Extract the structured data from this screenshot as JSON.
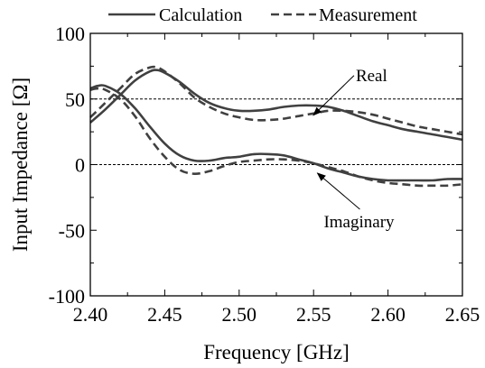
{
  "chart_data": {
    "type": "line",
    "xlabel": "Frequency [GHz]",
    "ylabel": "Input Impedance [Ω]",
    "xlim": [
      2.4,
      2.65
    ],
    "ylim": [
      -100,
      100
    ],
    "xticks": [
      "2.40",
      "2.45",
      "2.50",
      "2.55",
      "2.60",
      "2.65"
    ],
    "yticks": [
      "100",
      "50",
      "0",
      "-50",
      "-100"
    ],
    "reference_lines": [
      50,
      0
    ],
    "legend": {
      "position": "top",
      "entries": [
        "Calculation",
        "Measurement"
      ]
    },
    "annotations": [
      {
        "text": "Real",
        "x": 2.545,
        "y": 50
      },
      {
        "text": "Imaginary",
        "x": 2.555,
        "y": -1
      }
    ],
    "grid": false,
    "series": [
      {
        "name": "Calculation",
        "component": "Real",
        "style": "solid",
        "color": "#404040",
        "x": [
          2.4,
          2.41,
          2.42,
          2.43,
          2.44,
          2.445,
          2.45,
          2.46,
          2.47,
          2.48,
          2.49,
          2.5,
          2.51,
          2.52,
          2.53,
          2.54,
          2.55,
          2.56,
          2.57,
          2.58,
          2.59,
          2.6,
          2.61,
          2.62,
          2.63,
          2.64,
          2.65
        ],
        "y": [
          32,
          42,
          53,
          64,
          71,
          72,
          70,
          63,
          54,
          47,
          43,
          41,
          41,
          42,
          44,
          45,
          45,
          44,
          41,
          37,
          33,
          30,
          27,
          25,
          23,
          21,
          19
        ]
      },
      {
        "name": "Measurement",
        "component": "Real",
        "style": "dashed",
        "color": "#404040",
        "x": [
          2.4,
          2.41,
          2.42,
          2.43,
          2.44,
          2.445,
          2.45,
          2.46,
          2.47,
          2.48,
          2.49,
          2.5,
          2.51,
          2.52,
          2.53,
          2.54,
          2.55,
          2.56,
          2.57,
          2.58,
          2.59,
          2.6,
          2.61,
          2.62,
          2.63,
          2.64,
          2.65
        ],
        "y": [
          36,
          47,
          58,
          69,
          74,
          74,
          71,
          62,
          51,
          44,
          39,
          36,
          34,
          34,
          35,
          37,
          39,
          41,
          41,
          40,
          38,
          35,
          32,
          29,
          27,
          25,
          23
        ]
      },
      {
        "name": "Calculation",
        "component": "Imaginary",
        "style": "solid",
        "color": "#404040",
        "x": [
          2.4,
          2.405,
          2.41,
          2.42,
          2.43,
          2.44,
          2.45,
          2.46,
          2.47,
          2.48,
          2.49,
          2.5,
          2.51,
          2.52,
          2.53,
          2.54,
          2.55,
          2.56,
          2.57,
          2.58,
          2.59,
          2.6,
          2.61,
          2.62,
          2.63,
          2.64,
          2.65
        ],
        "y": [
          58,
          60,
          60,
          54,
          43,
          29,
          16,
          7,
          3,
          3,
          5,
          6,
          8,
          8,
          7,
          4,
          1,
          -3,
          -6,
          -9,
          -11,
          -12,
          -12,
          -12,
          -12,
          -11,
          -11
        ]
      },
      {
        "name": "Measurement",
        "component": "Imaginary",
        "style": "dashed",
        "color": "#404040",
        "x": [
          2.4,
          2.405,
          2.41,
          2.42,
          2.43,
          2.44,
          2.45,
          2.46,
          2.47,
          2.48,
          2.49,
          2.5,
          2.51,
          2.52,
          2.53,
          2.54,
          2.55,
          2.56,
          2.57,
          2.58,
          2.59,
          2.6,
          2.61,
          2.62,
          2.63,
          2.64,
          2.65
        ],
        "y": [
          57,
          58,
          57,
          50,
          37,
          20,
          6,
          -4,
          -7,
          -5,
          -1,
          2,
          3,
          4,
          4,
          3,
          1,
          -2,
          -5,
          -9,
          -12,
          -14,
          -15,
          -16,
          -16,
          -16,
          -15
        ]
      }
    ]
  }
}
